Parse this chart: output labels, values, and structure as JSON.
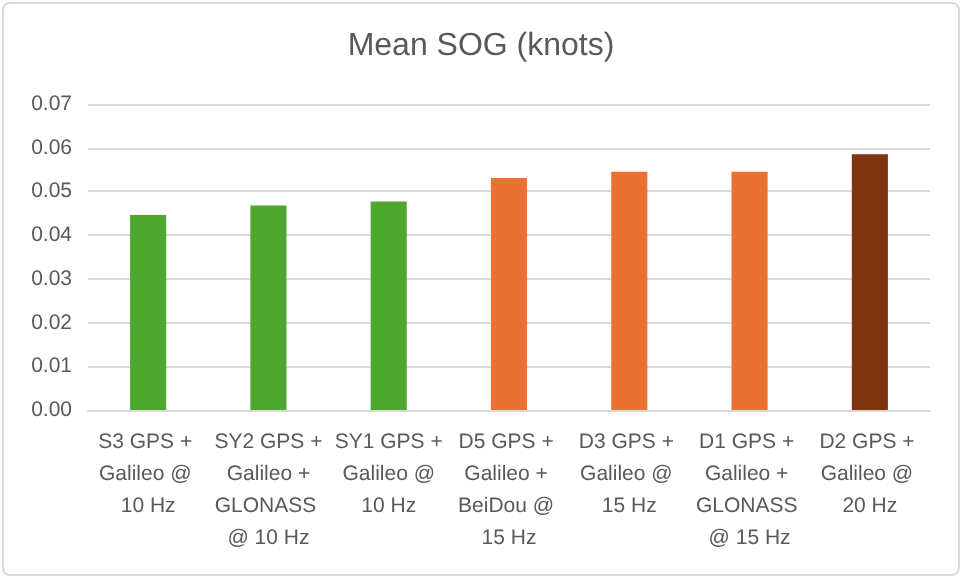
{
  "chart_data": {
    "type": "bar",
    "title": "Mean SOG (knots)",
    "categories": [
      "S3 GPS + Galileo @ 10 Hz",
      "SY2 GPS + Galileo + GLONASS @ 10 Hz",
      "SY1 GPS + Galileo @ 10 Hz",
      "D5 GPS + Galileo + BeiDou @ 15 Hz",
      "D3 GPS + Galileo @ 15 Hz",
      "D1 GPS + Galileo + GLONASS @ 15 Hz",
      "D2 GPS + Galileo @ 20 Hz"
    ],
    "values": [
      0.0446,
      0.0468,
      0.0477,
      0.0531,
      0.0545,
      0.0545,
      0.0585
    ],
    "colors": [
      "#4ea72e",
      "#4ea72e",
      "#4ea72e",
      "#e97132",
      "#e97132",
      "#e97132",
      "#7f3410"
    ],
    "ylim": [
      0,
      0.07
    ],
    "yticks": [
      {
        "value": 0,
        "label": "0.00"
      },
      {
        "value": 0.01,
        "label": "0.01"
      },
      {
        "value": 0.02,
        "label": "0.02"
      },
      {
        "value": 0.03,
        "label": "0.03"
      },
      {
        "value": 0.04,
        "label": "0.04"
      },
      {
        "value": 0.05,
        "label": "0.05"
      },
      {
        "value": 0.06,
        "label": "0.06"
      },
      {
        "value": 0.07,
        "label": "0.07"
      }
    ],
    "grid": true
  }
}
